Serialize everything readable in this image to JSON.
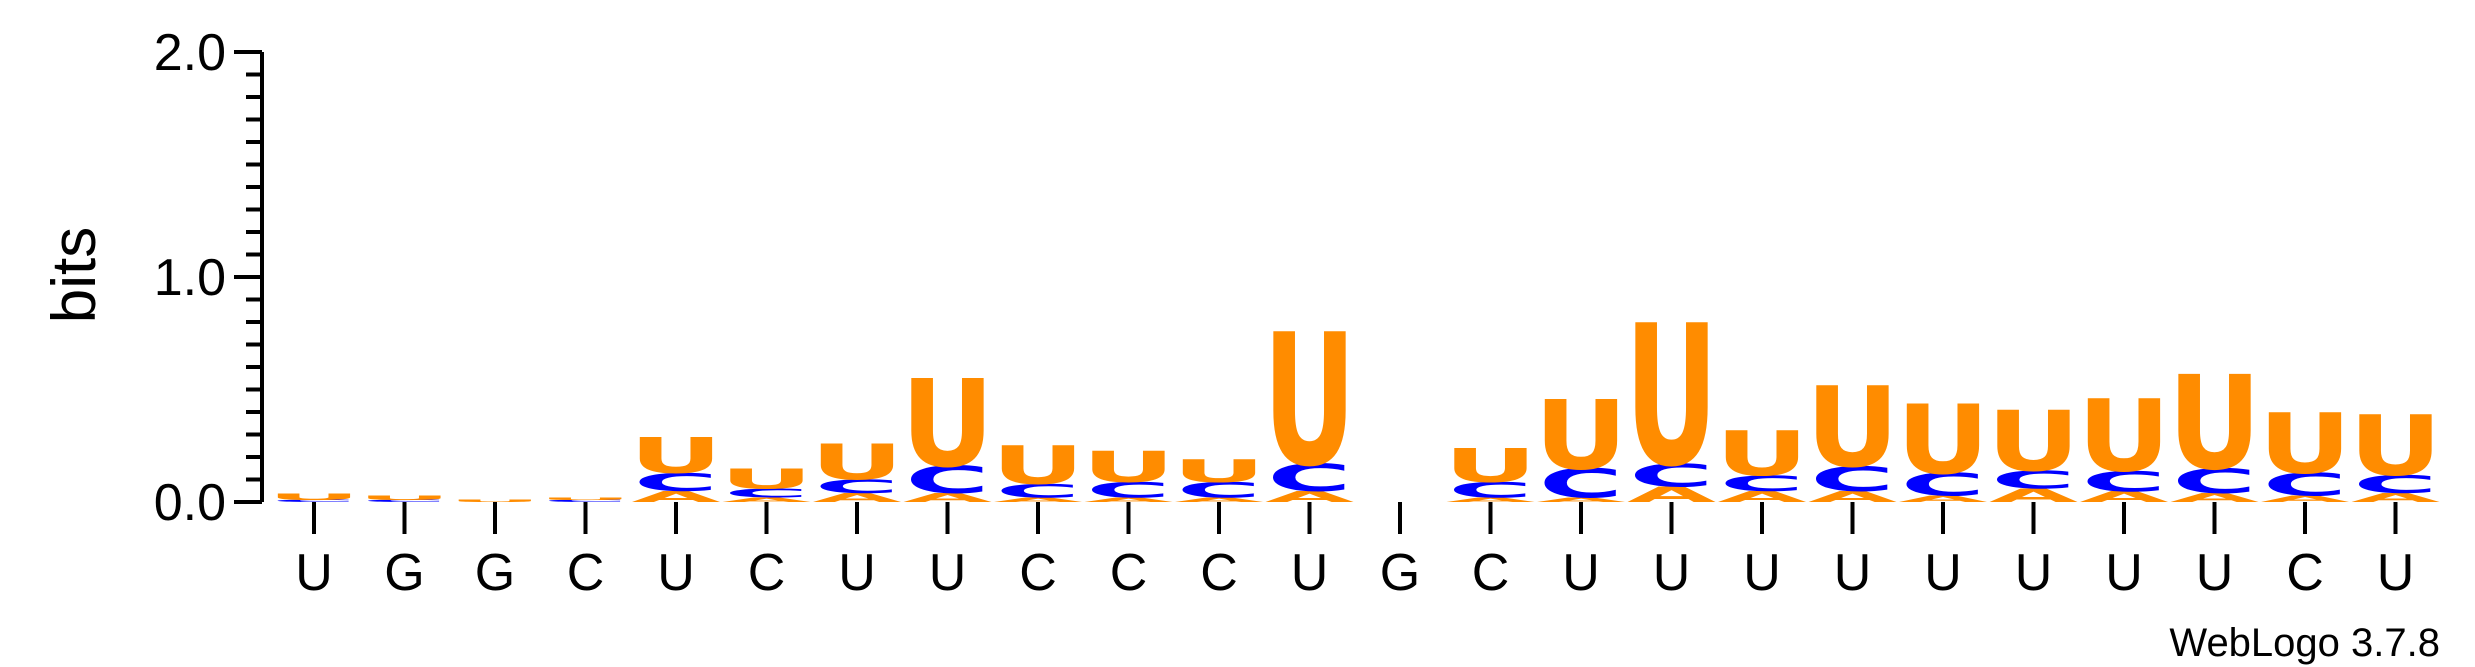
{
  "chart_data": {
    "type": "sequence-logo",
    "ylabel": "bits",
    "ylim": [
      0,
      2.0
    ],
    "yticks": [
      "0.0",
      "1.0",
      "2.0"
    ],
    "colors": {
      "U": "#FF8C00",
      "C": "#0000FF",
      "A": "#FF8C00",
      "G": "#FF8C00"
    },
    "credit": "WebLogo 3.7.8",
    "positions": [
      {
        "label": "U",
        "stack": [
          {
            "letter": "C",
            "bits": 0.01
          },
          {
            "letter": "U",
            "bits": 0.03
          }
        ]
      },
      {
        "label": "G",
        "stack": [
          {
            "letter": "C",
            "bits": 0.01
          },
          {
            "letter": "U",
            "bits": 0.02
          }
        ]
      },
      {
        "label": "G",
        "stack": [
          {
            "letter": "U",
            "bits": 0.01
          }
        ]
      },
      {
        "label": "C",
        "stack": [
          {
            "letter": "C",
            "bits": 0.01
          },
          {
            "letter": "U",
            "bits": 0.01
          }
        ]
      },
      {
        "label": "U",
        "stack": [
          {
            "letter": "A",
            "bits": 0.05
          },
          {
            "letter": "C",
            "bits": 0.08
          },
          {
            "letter": "U",
            "bits": 0.16
          }
        ]
      },
      {
        "label": "C",
        "stack": [
          {
            "letter": "A",
            "bits": 0.02
          },
          {
            "letter": "C",
            "bits": 0.04
          },
          {
            "letter": "U",
            "bits": 0.09
          }
        ]
      },
      {
        "label": "U",
        "stack": [
          {
            "letter": "A",
            "bits": 0.04
          },
          {
            "letter": "C",
            "bits": 0.06
          },
          {
            "letter": "U",
            "bits": 0.16
          }
        ]
      },
      {
        "label": "U",
        "stack": [
          {
            "letter": "A",
            "bits": 0.04
          },
          {
            "letter": "C",
            "bits": 0.12
          },
          {
            "letter": "U",
            "bits": 0.39
          }
        ]
      },
      {
        "label": "C",
        "stack": [
          {
            "letter": "A",
            "bits": 0.02
          },
          {
            "letter": "C",
            "bits": 0.06
          },
          {
            "letter": "U",
            "bits": 0.17
          }
        ]
      },
      {
        "label": "C",
        "stack": [
          {
            "letter": "A",
            "bits": 0.02
          },
          {
            "letter": "C",
            "bits": 0.07
          },
          {
            "letter": "U",
            "bits": 0.14
          }
        ]
      },
      {
        "label": "C",
        "stack": [
          {
            "letter": "A",
            "bits": 0.02
          },
          {
            "letter": "C",
            "bits": 0.07
          },
          {
            "letter": "U",
            "bits": 0.1
          }
        ]
      },
      {
        "label": "U",
        "stack": [
          {
            "letter": "A",
            "bits": 0.05
          },
          {
            "letter": "C",
            "bits": 0.12
          },
          {
            "letter": "U",
            "bits": 0.59
          }
        ]
      },
      {
        "label": "G",
        "stack": []
      },
      {
        "label": "C",
        "stack": [
          {
            "letter": "A",
            "bits": 0.02
          },
          {
            "letter": "C",
            "bits": 0.07
          },
          {
            "letter": "U",
            "bits": 0.15
          }
        ]
      },
      {
        "label": "U",
        "stack": [
          {
            "letter": "A",
            "bits": 0.02
          },
          {
            "letter": "C",
            "bits": 0.13
          },
          {
            "letter": "U",
            "bits": 0.31
          }
        ]
      },
      {
        "label": "U",
        "stack": [
          {
            "letter": "A",
            "bits": 0.07
          },
          {
            "letter": "C",
            "bits": 0.1
          },
          {
            "letter": "U",
            "bits": 0.63
          }
        ]
      },
      {
        "label": "U",
        "stack": [
          {
            "letter": "A",
            "bits": 0.05
          },
          {
            "letter": "C",
            "bits": 0.07
          },
          {
            "letter": "U",
            "bits": 0.2
          }
        ]
      },
      {
        "label": "U",
        "stack": [
          {
            "letter": "A",
            "bits": 0.05
          },
          {
            "letter": "C",
            "bits": 0.11
          },
          {
            "letter": "U",
            "bits": 0.36
          }
        ]
      },
      {
        "label": "U",
        "stack": [
          {
            "letter": "A",
            "bits": 0.03
          },
          {
            "letter": "C",
            "bits": 0.1
          },
          {
            "letter": "U",
            "bits": 0.31
          }
        ]
      },
      {
        "label": "U",
        "stack": [
          {
            "letter": "A",
            "bits": 0.06
          },
          {
            "letter": "C",
            "bits": 0.08
          },
          {
            "letter": "U",
            "bits": 0.27
          }
        ]
      },
      {
        "label": "U",
        "stack": [
          {
            "letter": "A",
            "bits": 0.05
          },
          {
            "letter": "C",
            "bits": 0.09
          },
          {
            "letter": "U",
            "bits": 0.32
          }
        ]
      },
      {
        "label": "U",
        "stack": [
          {
            "letter": "A",
            "bits": 0.04
          },
          {
            "letter": "C",
            "bits": 0.11
          },
          {
            "letter": "U",
            "bits": 0.42
          }
        ]
      },
      {
        "label": "C",
        "stack": [
          {
            "letter": "A",
            "bits": 0.03
          },
          {
            "letter": "C",
            "bits": 0.1
          },
          {
            "letter": "U",
            "bits": 0.27
          }
        ]
      },
      {
        "label": "U",
        "stack": [
          {
            "letter": "A",
            "bits": 0.04
          },
          {
            "letter": "C",
            "bits": 0.08
          },
          {
            "letter": "U",
            "bits": 0.27
          }
        ]
      }
    ]
  }
}
